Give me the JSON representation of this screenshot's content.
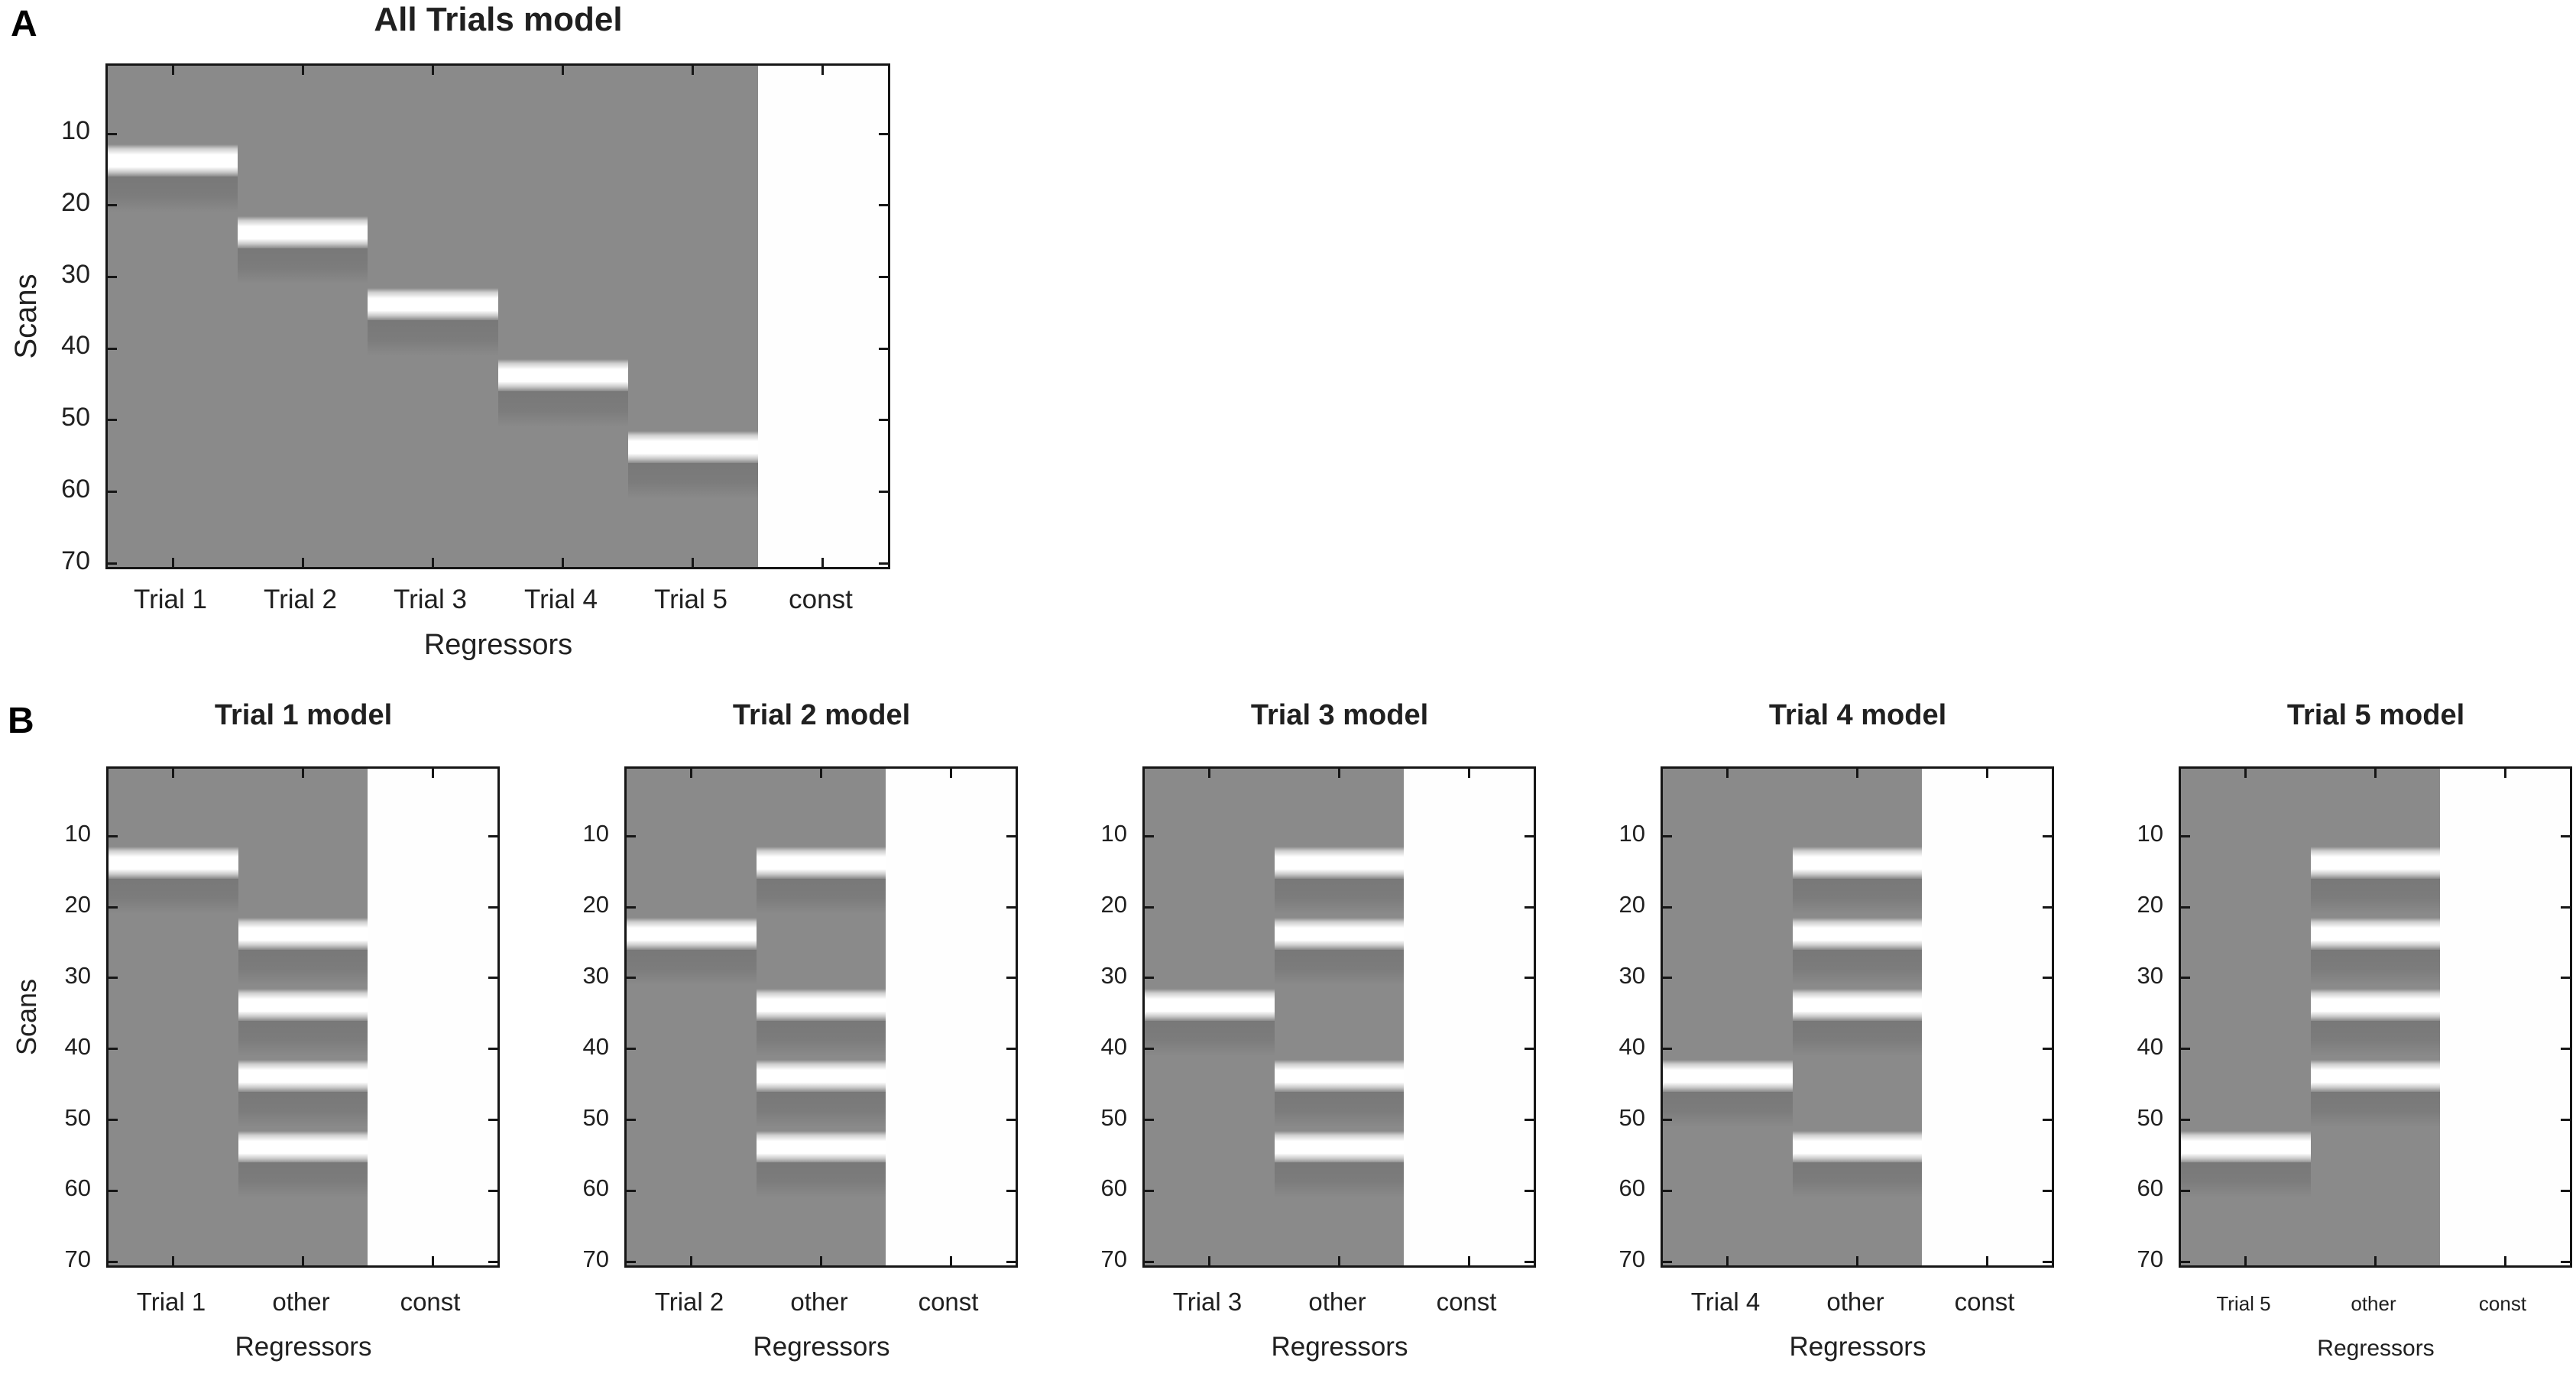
{
  "figure": {
    "panels": {
      "a_label": "A",
      "b_label": "B"
    }
  },
  "colors": {
    "background": "#ffffff",
    "matrix_gray": "#8a8a8a",
    "undershoot_gray": "#7b7b7b",
    "band_white": "#ffffff",
    "const_white": "#fefefe",
    "axis": "#161616",
    "text": "#202020"
  },
  "chart_data": [
    {
      "type": "heatmap",
      "panel": "A",
      "title": "All Trials model",
      "xlabel": "Regressors",
      "ylabel": "Scans",
      "y_ticks": [
        10,
        20,
        30,
        40,
        50,
        60,
        70
      ],
      "y_range": [
        0.5,
        70.5
      ],
      "band_meta": {
        "bright_scans": 4.5,
        "undershoot_scans": 5
      },
      "columns": [
        {
          "label": "Trial 1",
          "fill": "gray",
          "bands": [
            12
          ]
        },
        {
          "label": "Trial 2",
          "fill": "gray",
          "bands": [
            22
          ]
        },
        {
          "label": "Trial 3",
          "fill": "gray",
          "bands": [
            32
          ]
        },
        {
          "label": "Trial 4",
          "fill": "gray",
          "bands": [
            42
          ]
        },
        {
          "label": "Trial 5",
          "fill": "gray",
          "bands": [
            52
          ]
        },
        {
          "label": "const",
          "fill": "white",
          "bands": []
        }
      ]
    },
    {
      "type": "heatmap",
      "panel": "B1",
      "title": "Trial 1 model",
      "xlabel": "Regressors",
      "ylabel": "Scans",
      "y_ticks": [
        10,
        20,
        30,
        40,
        50,
        60,
        70
      ],
      "y_range": [
        0.5,
        70.5
      ],
      "band_meta": {
        "bright_scans": 4.5,
        "undershoot_scans": 5
      },
      "columns": [
        {
          "label": "Trial 1",
          "fill": "gray",
          "bands": [
            12
          ]
        },
        {
          "label": "other",
          "fill": "gray",
          "bands": [
            22,
            32,
            42,
            52
          ]
        },
        {
          "label": "const",
          "fill": "white",
          "bands": []
        }
      ]
    },
    {
      "type": "heatmap",
      "panel": "B2",
      "title": "Trial 2 model",
      "xlabel": "Regressors",
      "ylabel": null,
      "y_ticks": [
        10,
        20,
        30,
        40,
        50,
        60,
        70
      ],
      "y_range": [
        0.5,
        70.5
      ],
      "band_meta": {
        "bright_scans": 4.5,
        "undershoot_scans": 5
      },
      "columns": [
        {
          "label": "Trial 2",
          "fill": "gray",
          "bands": [
            22
          ]
        },
        {
          "label": "other",
          "fill": "gray",
          "bands": [
            12,
            32,
            42,
            52
          ]
        },
        {
          "label": "const",
          "fill": "white",
          "bands": []
        }
      ]
    },
    {
      "type": "heatmap",
      "panel": "B3",
      "title": "Trial 3 model",
      "xlabel": "Regressors",
      "ylabel": null,
      "y_ticks": [
        10,
        20,
        30,
        40,
        50,
        60,
        70
      ],
      "y_range": [
        0.5,
        70.5
      ],
      "band_meta": {
        "bright_scans": 4.5,
        "undershoot_scans": 5
      },
      "columns": [
        {
          "label": "Trial 3",
          "fill": "gray",
          "bands": [
            32
          ]
        },
        {
          "label": "other",
          "fill": "gray",
          "bands": [
            12,
            22,
            42,
            52
          ]
        },
        {
          "label": "const",
          "fill": "white",
          "bands": []
        }
      ]
    },
    {
      "type": "heatmap",
      "panel": "B4",
      "title": "Trial 4 model",
      "xlabel": "Regressors",
      "ylabel": null,
      "y_ticks": [
        10,
        20,
        30,
        40,
        50,
        60,
        70
      ],
      "y_range": [
        0.5,
        70.5
      ],
      "band_meta": {
        "bright_scans": 4.5,
        "undershoot_scans": 5
      },
      "columns": [
        {
          "label": "Trial 4",
          "fill": "gray",
          "bands": [
            42
          ]
        },
        {
          "label": "other",
          "fill": "gray",
          "bands": [
            12,
            22,
            32,
            52
          ]
        },
        {
          "label": "const",
          "fill": "white",
          "bands": []
        }
      ]
    },
    {
      "type": "heatmap",
      "panel": "B5",
      "title": "Trial 5 model",
      "xlabel": "Regressors",
      "ylabel": null,
      "y_ticks": [
        10,
        20,
        30,
        40,
        50,
        60,
        70
      ],
      "y_range": [
        0.5,
        70.5
      ],
      "band_meta": {
        "bright_scans": 4.5,
        "undershoot_scans": 5
      },
      "columns": [
        {
          "label": "Trial 5",
          "fill": "gray",
          "bands": [
            52
          ]
        },
        {
          "label": "other",
          "fill": "gray",
          "bands": [
            12,
            22,
            32,
            42
          ]
        },
        {
          "label": "const",
          "fill": "white",
          "bands": []
        }
      ]
    }
  ]
}
